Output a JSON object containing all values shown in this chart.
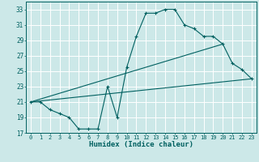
{
  "xlabel": "Humidex (Indice chaleur)",
  "bg_color": "#cce8e8",
  "grid_color": "#ffffff",
  "line_color": "#006060",
  "xlim": [
    -0.5,
    23.5
  ],
  "ylim": [
    17,
    34
  ],
  "xticks": [
    0,
    1,
    2,
    3,
    4,
    5,
    6,
    7,
    8,
    9,
    10,
    11,
    12,
    13,
    14,
    15,
    16,
    17,
    18,
    19,
    20,
    21,
    22,
    23
  ],
  "yticks": [
    17,
    19,
    21,
    23,
    25,
    27,
    29,
    31,
    33
  ],
  "curve1_x": [
    0,
    1,
    2,
    3,
    4,
    5,
    6,
    7,
    8,
    9,
    10,
    11,
    12,
    13,
    14,
    15,
    16,
    17,
    18,
    19,
    20,
    21,
    22,
    23
  ],
  "curve1_y": [
    21,
    21,
    20,
    19.5,
    19,
    17.5,
    17.5,
    17.5,
    23,
    19,
    25.5,
    29.5,
    32.5,
    32.5,
    33,
    33,
    31,
    30.5,
    29.5,
    29.5,
    28.5,
    26,
    25.2,
    24
  ],
  "curve2_x": [
    0,
    23
  ],
  "curve2_y": [
    21,
    24
  ],
  "curve3_x": [
    0,
    20
  ],
  "curve3_y": [
    21,
    28.5
  ],
  "marker_size": 2.5
}
